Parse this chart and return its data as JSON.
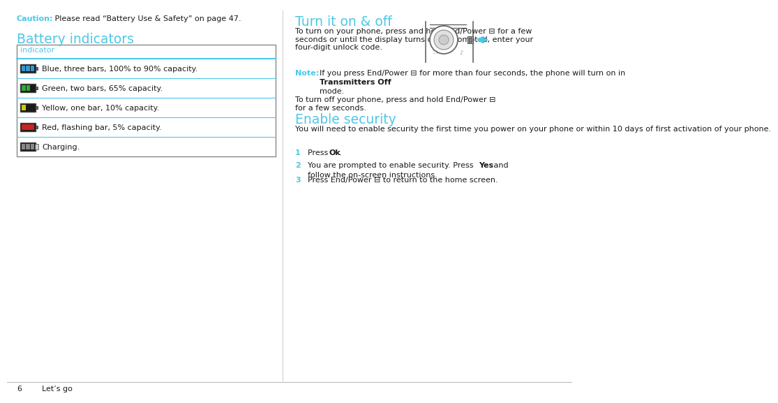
{
  "page_num": "6",
  "page_label": "Let’s go",
  "bg_color": "#ffffff",
  "cyan": "#4dc8e8",
  "dark": "#1a1a1a",
  "gray_line": "#aaaaaa",
  "caution_label": "Caution:",
  "caution_text": " Please read “Battery Use & Safety” on page 47.",
  "battery_title": "Battery indicators",
  "table_header": "indicator",
  "table_rows": [
    {
      "bars": 3,
      "bar_color": "#3399cc",
      "text": "Blue, three bars, 100% to 90% capacity."
    },
    {
      "bars": 2,
      "bar_color": "#33aa33",
      "text": "Green, two bars, 65% capacity."
    },
    {
      "bars": 1,
      "bar_color": "#cccc00",
      "text": "Yellow, one bar, 10% capacity."
    },
    {
      "bars": 0,
      "bar_color": "#cc2222",
      "text": "Red, flashing bar, 5% capacity."
    },
    {
      "bars": -1,
      "bar_color": "#888888",
      "text": "Charging."
    }
  ],
  "right_title1": "Turn it on & off",
  "right_p1a": "To turn on your phone, press and hold End/Power",
  "right_p1b": " for a few\nseconds or until the display turns on. If prompted, enter your\nfour-digit unlock code.",
  "note_label": "Note:",
  "note_text1": " If you press End/Power",
  "note_text2": " for more than four seconds, the phone will turn on in ",
  "note_bold": "Transmitters Off",
  "note_text3": "\nmode.",
  "right_p2": "To turn off your phone, press and hold End/Power",
  "right_p2b": " for a few seconds.",
  "right_title2": "Enable security",
  "enable_p": "You will need to enable security the first time you power on your phone or within 10 days of first activation of your phone.",
  "step1_pre": "Press ",
  "step1_bold": "Ok",
  "step1_post": ".",
  "step2_pre": "You are prompted to enable security. Press ",
  "step2_bold": "Yes",
  "step2_post": " and\nfollow the on-screen instructions.",
  "step3": "Press End/Power",
  "step3b": " to return to the home screen.",
  "fs_body": 8.0,
  "fs_heading": 13.5,
  "fs_small": 7.0
}
